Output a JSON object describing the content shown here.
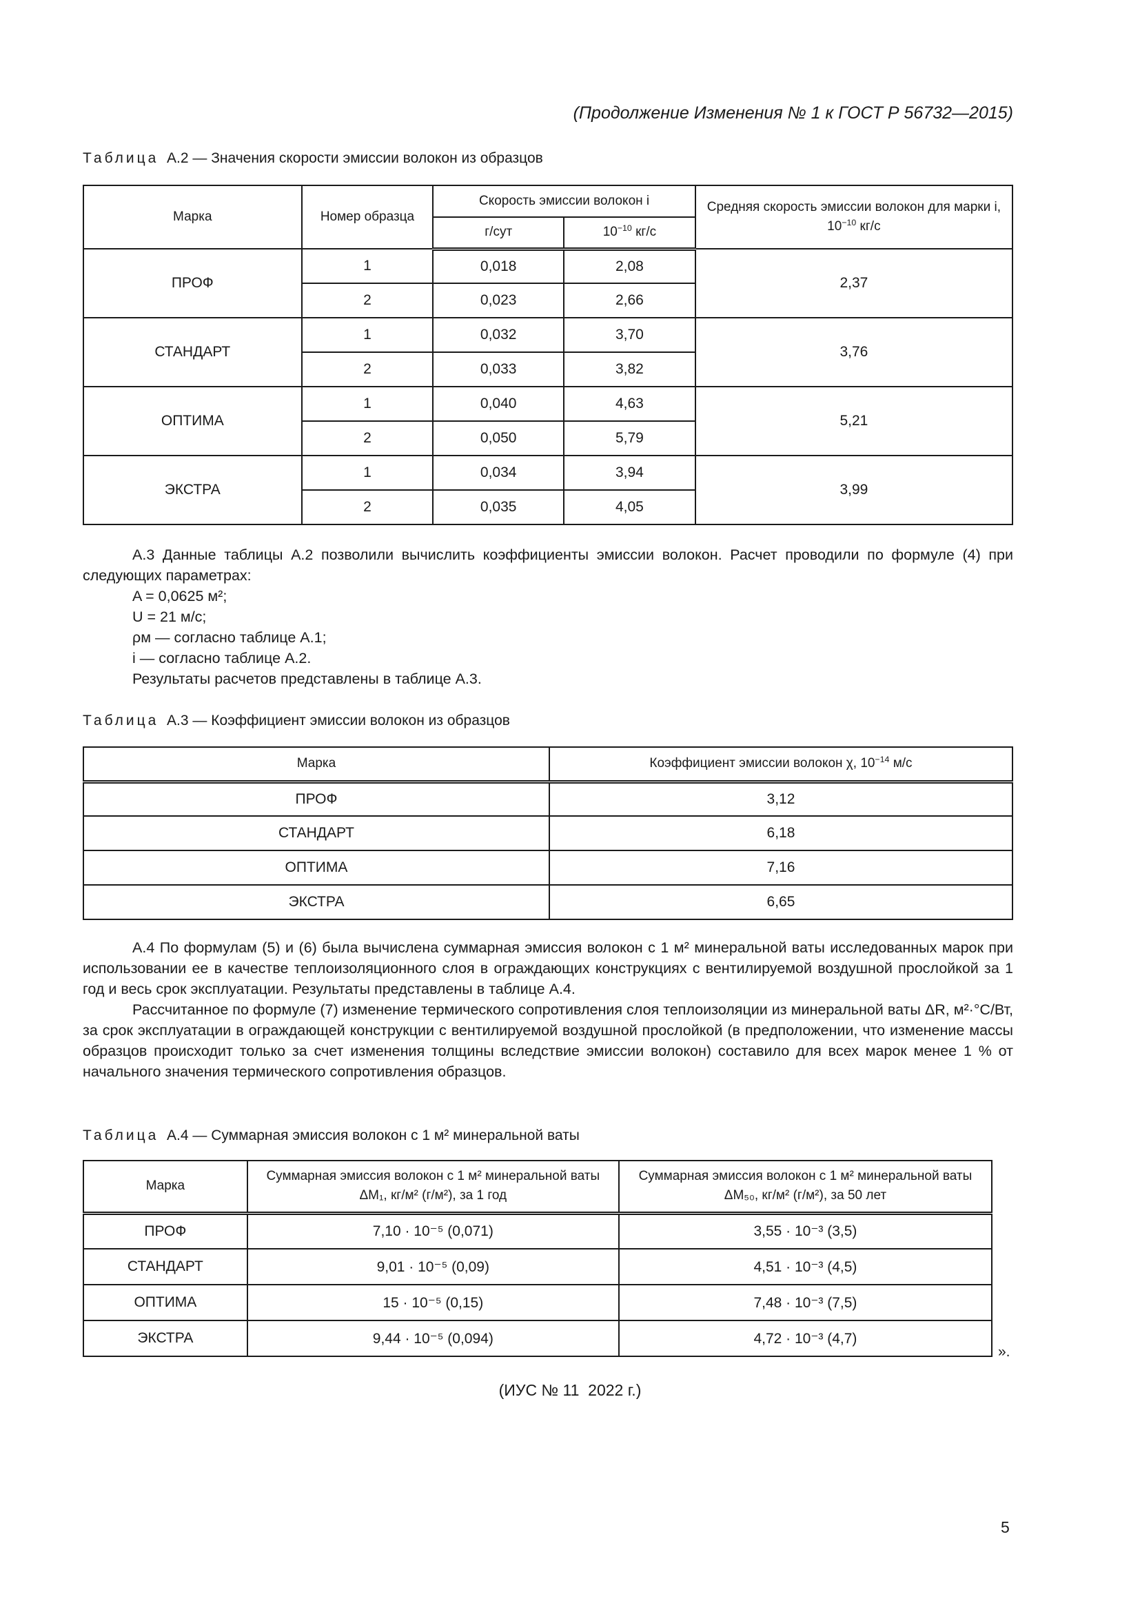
{
  "header": "(Продолжение Изменения № 1 к ГОСТ Р 56732—2015)",
  "table_word": "Таблица",
  "table_a2": {
    "caption": "А.2 — Значения скорости эмиссии волокон из образцов",
    "headers": {
      "brand": "Марка",
      "sample": "Номер образца",
      "rate": "Скорость эмиссии волокон i",
      "unit1": "г/сут",
      "unit2_base": "10",
      "unit2_exp": "−10",
      "unit2_tail": "кг/с",
      "avg": "Средняя скорость эмиссии волокон для марки i, 10",
      "avg_exp": "−10",
      "avg_tail": "кг/с"
    },
    "groups": [
      {
        "brand": "ПРОФ",
        "avg": "2,37",
        "rows": [
          {
            "n": "1",
            "g": "0,018",
            "kg": "2,08"
          },
          {
            "n": "2",
            "g": "0,023",
            "kg": "2,66"
          }
        ]
      },
      {
        "brand": "СТАНДАРТ",
        "avg": "3,76",
        "rows": [
          {
            "n": "1",
            "g": "0,032",
            "kg": "3,70"
          },
          {
            "n": "2",
            "g": "0,033",
            "kg": "3,82"
          }
        ]
      },
      {
        "brand": "ОПТИМА",
        "avg": "5,21",
        "rows": [
          {
            "n": "1",
            "g": "0,040",
            "kg": "4,63"
          },
          {
            "n": "2",
            "g": "0,050",
            "kg": "5,79"
          }
        ]
      },
      {
        "brand": "ЭКСТРА",
        "avg": "3,99",
        "rows": [
          {
            "n": "1",
            "g": "0,034",
            "kg": "3,94"
          },
          {
            "n": "2",
            "g": "0,035",
            "kg": "4,05"
          }
        ]
      }
    ]
  },
  "para_a3": {
    "intro": "А.3 Данные таблицы А.2 позволили вычислить коэффициенты эмиссии волокон. Расчет проводили по формуле (4) при следующих параметрах:",
    "p1": "A = 0,0625 м²;",
    "p2": "U = 21 м/с;",
    "p3": "ρм — согласно таблице А.1;",
    "p4": "i — согласно таблице А.2.",
    "p5": "Результаты расчетов представлены в таблице А.3."
  },
  "table_a3": {
    "caption": "А.3 — Коэффициент эмиссии волокон из образцов",
    "h_brand": "Марка",
    "h_coef": "Коэффициент эмиссии волокон χ, 10",
    "h_coef_exp": "−14",
    "h_coef_tail": "м/с",
    "rows": [
      {
        "brand": "ПРОФ",
        "v": "3,12"
      },
      {
        "brand": "СТАНДАРТ",
        "v": "6,18"
      },
      {
        "brand": "ОПТИМА",
        "v": "7,16"
      },
      {
        "brand": "ЭКСТРА",
        "v": "6,65"
      }
    ]
  },
  "para_a4": {
    "p1": "А.4 По формулам (5) и (6) была вычислена суммарная эмиссия волокон с 1 м² минеральной ваты исследованных марок при использовании ее в качестве теплоизоляционного слоя в ограждающих конструкциях с вентилируемой воздушной прослойкой за 1 год и весь срок эксплуатации. Результаты представлены в таблице А.4.",
    "p2": "Рассчитанное по формуле (7) изменение термического сопротивления слоя теплоизоляции из минеральной ваты ΔR, м²·°С/Вт, за срок эксплуатации в ограждающей конструкции с вентилируемой воздушной прослойкой (в предположении, что изменение массы образцов происходит только за счет изменения толщины вследствие эмиссии волокон) составило для всех марок менее 1 % от начального значения термического сопротивления образцов."
  },
  "table_a4": {
    "caption": "А.4 — Суммарная эмиссия волокон с 1 м² минеральной ваты",
    "h_brand": "Марка",
    "h_1": "Суммарная эмиссия волокон с 1 м² минеральной ваты ΔM₁, кг/м² (г/м²), за 1 год",
    "h_50": "Суммарная эмиссия волокон с 1 м² минеральной ваты ΔM₅₀, кг/м² (г/м²), за 50 лет",
    "rows": [
      {
        "brand": "ПРОФ",
        "m1": "7,10 · 10⁻⁵ (0,071)",
        "m50": "3,55 · 10⁻³ (3,5)"
      },
      {
        "brand": "СТАНДАРТ",
        "m1": "9,01 · 10⁻⁵ (0,09)",
        "m50": "4,51 · 10⁻³ (4,5)"
      },
      {
        "brand": "ОПТИМА",
        "m1": "15 · 10⁻⁵ (0,15)",
        "m50": "7,48 · 10⁻³ (7,5)"
      },
      {
        "brand": "ЭКСТРА",
        "m1": "9,44 · 10⁻⁵ (0,094)",
        "m50": "4,72 · 10⁻³ (4,7)"
      }
    ],
    "closing_quote": "»."
  },
  "footer_ius": "(ИУС № 11  2022 г.)",
  "page_number": "5"
}
